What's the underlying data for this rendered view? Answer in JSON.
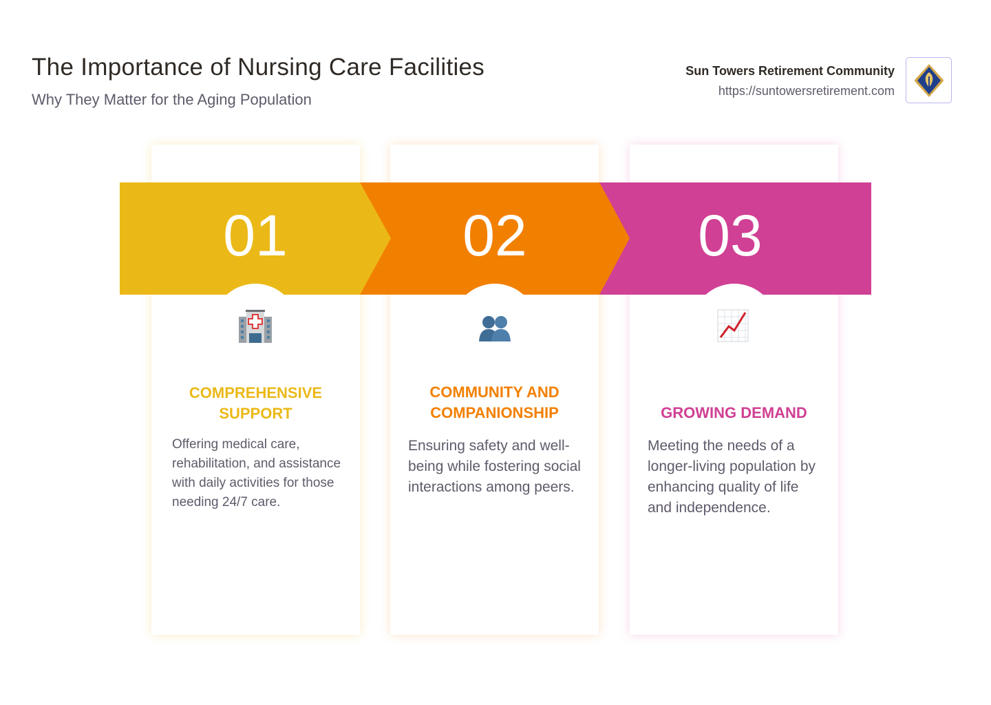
{
  "header": {
    "title": "The Importance of Nursing Care Facilities",
    "subtitle": "Why They Matter for the Aging Population"
  },
  "brand": {
    "name": "Sun Towers Retirement Community",
    "url": "https://suntowersretirement.com"
  },
  "colors": {
    "yellow": "#ebb917",
    "orange": "#f28000",
    "pink": "#d04094"
  },
  "steps": [
    {
      "number": "01",
      "icon": "hospital-icon",
      "heading": "Comprehensive Support",
      "description": "Offering medical care, rehabilitation, and assistance with daily activities for those needing 24/7 care."
    },
    {
      "number": "02",
      "icon": "people-icon",
      "heading": "Community and Companionship",
      "description": "Ensuring safety and well-being while fostering social interactions among peers."
    },
    {
      "number": "03",
      "icon": "chart-increasing-icon",
      "heading": "Growing Demand",
      "description": "Meeting the needs of a longer-living population by enhancing quality of life and independence."
    }
  ]
}
